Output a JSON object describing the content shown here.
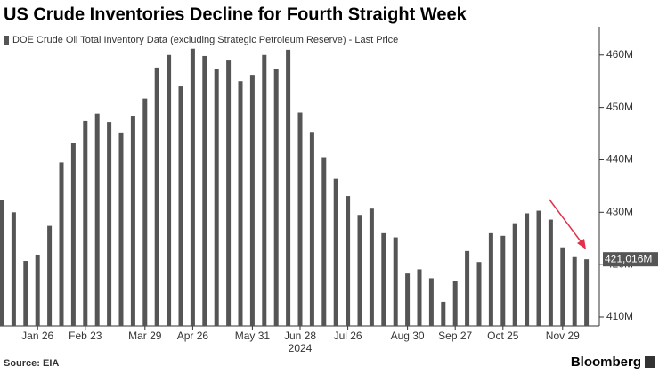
{
  "chart_data": {
    "type": "bar",
    "title": "US Crude Inventories Decline for Fourth Straight Week",
    "legend_label": "DOE Crude Oil Total Inventory Data (excluding Strategic Petroleum Reserve) - Last Price",
    "categories": [
      null,
      null,
      null,
      "Jan 26",
      null,
      null,
      null,
      "Feb 23",
      null,
      null,
      null,
      null,
      "Mar 29",
      null,
      null,
      null,
      "Apr 26",
      null,
      null,
      null,
      null,
      "May 31",
      null,
      null,
      null,
      "Jun 28",
      null,
      null,
      null,
      "Jul 26",
      null,
      null,
      null,
      null,
      "Aug 30",
      null,
      null,
      null,
      "Sep 27",
      null,
      null,
      null,
      "Oct 25",
      null,
      null,
      null,
      null,
      "Nov 29",
      null,
      null
    ],
    "year_label": "2024",
    "values": [
      432.4,
      430.0,
      420.7,
      421.9,
      427.4,
      439.5,
      443.3,
      447.4,
      448.8,
      447.2,
      445.2,
      448.4,
      451.7,
      457.6,
      460.0,
      454.0,
      461.2,
      459.8,
      457.4,
      459.1,
      455.0,
      456.2,
      460.0,
      457.4,
      461.0,
      449.0,
      445.3,
      440.5,
      436.4,
      433.1,
      429.5,
      430.7,
      426.0,
      425.2,
      418.3,
      419.1,
      417.4,
      412.9,
      416.9,
      422.6,
      420.5,
      426.0,
      425.5,
      427.9,
      429.8,
      430.3,
      428.6,
      423.3,
      421.6,
      421.016
    ],
    "value_labels": [
      null,
      null,
      null,
      null,
      null,
      null,
      null,
      null,
      null,
      null,
      null,
      null,
      null,
      null,
      null,
      null,
      null,
      null,
      null,
      null,
      null,
      null,
      null,
      null,
      null,
      null,
      null,
      null,
      null,
      null,
      null,
      null,
      null,
      null,
      null,
      null,
      null,
      null,
      null,
      null,
      null,
      null,
      null,
      null,
      null,
      null,
      null,
      null,
      null,
      "421,016M"
    ],
    "color": "#555555",
    "ylim": [
      408.3,
      465.4
    ],
    "yticks": [
      {
        "value": 410,
        "label": "410M"
      },
      {
        "value": 420,
        "label": "420M"
      },
      {
        "value": 430,
        "label": "430M"
      },
      {
        "value": 440,
        "label": "440M"
      },
      {
        "value": 450,
        "label": "450M"
      },
      {
        "value": 460,
        "label": "460M"
      }
    ],
    "source": "Source: EIA",
    "brand": "Bloomberg"
  }
}
